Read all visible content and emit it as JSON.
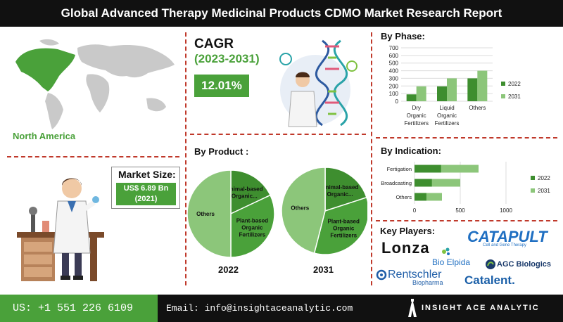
{
  "title": "Global Advanced Therapy Medicinal Products CDMO Market Research Report",
  "region": {
    "label": "North America"
  },
  "market_size": {
    "title": "Market Size:",
    "value": "US$ 6.89 Bn",
    "year": "(2021)"
  },
  "cagr": {
    "title": "CAGR",
    "period": "(2023-2031)",
    "value": "12.01%"
  },
  "by_product": {
    "title": "By Product :",
    "charts": [
      {
        "year": "2022",
        "slices": [
          {
            "label": "Animal-based Organic...",
            "value": 18,
            "color": "#3e8e2f"
          },
          {
            "label": "Plant-based Organic Fertilizers",
            "value": 32,
            "color": "#4aa13a"
          },
          {
            "label": "Others",
            "value": 50,
            "color": "#8cc67a"
          }
        ]
      },
      {
        "year": "2031",
        "slices": [
          {
            "label": "Animal-based Organic...",
            "value": 20,
            "color": "#3e8e2f"
          },
          {
            "label": "Plant-based Organic Fertilizers",
            "value": 34,
            "color": "#4aa13a"
          },
          {
            "label": "Others",
            "value": 46,
            "color": "#8cc67a"
          }
        ]
      }
    ]
  },
  "by_phase": {
    "title": "By Phase:"
  },
  "by_indication": {
    "title": "By Indication:"
  },
  "key_players": {
    "title": "Key Players:",
    "logos": [
      "Lonza",
      "CATAPULT",
      "Cell and Gene Therapy",
      "Bio Elpida",
      "AGC Biologics",
      "Rentschler",
      "Biopharma",
      "Catalent."
    ]
  },
  "footer": {
    "phone": "US: +1 551 226 6109",
    "email": "Email: info@insightaceanalytic.com",
    "brand": "INSIGHT ACE ANALYTIC"
  },
  "colors": {
    "accent": "#4aa13a",
    "dark_bar": "#3e8e2f",
    "light_bar": "#8cc67a",
    "divider": "#c0392b"
  },
  "chart_data": [
    {
      "type": "bar",
      "title": "By Phase:",
      "categories": [
        "Dry Organic Fertilizers",
        "Liquid Organic Fertilizers",
        "Others"
      ],
      "series": [
        {
          "name": "2022",
          "values": [
            90,
            195,
            300
          ]
        },
        {
          "name": "2031",
          "values": [
            195,
            300,
            400
          ]
        }
      ],
      "yticks": [
        0,
        100,
        200,
        300,
        400,
        500,
        600,
        700
      ],
      "ylim": [
        0,
        700
      ],
      "grid": true,
      "legend": "right"
    },
    {
      "type": "bar",
      "orientation": "horizontal",
      "title": "By Indication:",
      "categories": [
        "Fertigation",
        "Broadcasting",
        "Others"
      ],
      "series": [
        {
          "name": "2022",
          "values": [
            290,
            190,
            130
          ]
        },
        {
          "name": "2031",
          "values": [
            700,
            500,
            300
          ]
        }
      ],
      "xticks": [
        0,
        500,
        1000
      ],
      "xlim": [
        0,
        1000
      ],
      "grid": true,
      "legend": "right"
    }
  ]
}
